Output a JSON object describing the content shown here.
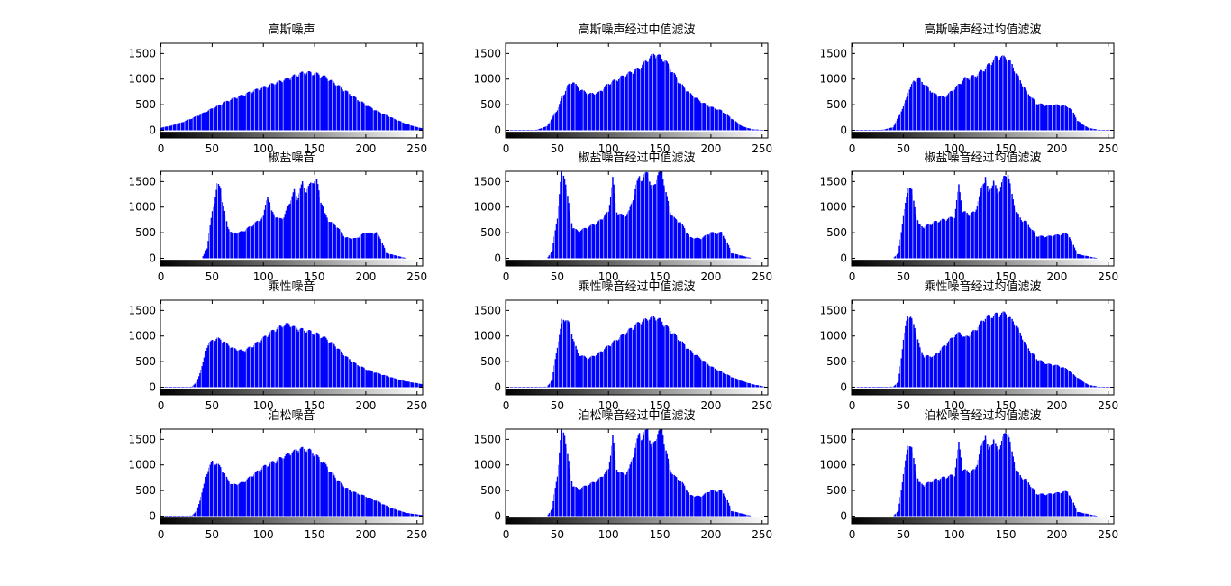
{
  "figure": {
    "rows": 4,
    "cols": 3
  },
  "colors": {
    "bar": "#0000ff",
    "bar_gap": "#ffffff",
    "axis": "#000000",
    "background": "#ffffff"
  },
  "chart_data": [
    {
      "type": "bar",
      "title": "高斯噪声",
      "bins": 256,
      "xlim": [
        0,
        255
      ],
      "ylim": [
        -150,
        1700
      ],
      "xticks": [
        0,
        50,
        100,
        150,
        200,
        250
      ],
      "yticks": [
        0,
        500,
        1000,
        1500
      ],
      "colorbar": "grayscale",
      "profile": {
        "x": [
          0,
          10,
          20,
          30,
          40,
          50,
          60,
          70,
          80,
          90,
          100,
          110,
          120,
          130,
          140,
          150,
          160,
          170,
          180,
          190,
          200,
          210,
          220,
          230,
          240,
          250,
          255
        ],
        "y": [
          50,
          90,
          150,
          230,
          320,
          420,
          520,
          610,
          680,
          760,
          830,
          900,
          970,
          1050,
          1120,
          1100,
          1030,
          900,
          760,
          620,
          490,
          380,
          290,
          200,
          120,
          60,
          40
        ]
      }
    },
    {
      "type": "bar",
      "title": "高斯噪声经过中值滤波",
      "bins": 256,
      "xlim": [
        0,
        255
      ],
      "ylim": [
        -150,
        1700
      ],
      "xticks": [
        0,
        50,
        100,
        150,
        200,
        250
      ],
      "yticks": [
        0,
        500,
        1000,
        1500
      ],
      "colorbar": "grayscale",
      "profile": {
        "x": [
          0,
          30,
          40,
          50,
          55,
          60,
          65,
          70,
          80,
          90,
          100,
          110,
          120,
          130,
          140,
          145,
          150,
          155,
          160,
          170,
          180,
          190,
          200,
          210,
          220,
          230,
          240,
          255
        ],
        "y": [
          0,
          10,
          80,
          400,
          650,
          850,
          950,
          820,
          700,
          720,
          900,
          1000,
          1100,
          1200,
          1400,
          1480,
          1420,
          1350,
          1200,
          900,
          700,
          550,
          450,
          380,
          230,
          80,
          20,
          0
        ]
      }
    },
    {
      "type": "bar",
      "title": "高斯噪声经过均值滤波",
      "bins": 256,
      "xlim": [
        0,
        255
      ],
      "ylim": [
        -150,
        1700
      ],
      "xticks": [
        0,
        50,
        100,
        150,
        200,
        250
      ],
      "yticks": [
        0,
        500,
        1000,
        1500
      ],
      "colorbar": "grayscale",
      "profile": {
        "x": [
          0,
          30,
          40,
          50,
          55,
          60,
          65,
          70,
          80,
          90,
          100,
          110,
          120,
          130,
          140,
          145,
          150,
          155,
          160,
          170,
          180,
          190,
          200,
          210,
          215,
          220,
          230,
          240,
          255
        ],
        "y": [
          0,
          10,
          60,
          450,
          750,
          950,
          1000,
          900,
          700,
          640,
          800,
          1000,
          1050,
          1200,
          1400,
          1420,
          1400,
          1300,
          1100,
          750,
          520,
          480,
          490,
          460,
          380,
          180,
          50,
          10,
          0
        ]
      }
    },
    {
      "type": "bar",
      "title": "椒盐噪音",
      "bins": 256,
      "xlim": [
        0,
        255
      ],
      "ylim": [
        -150,
        1700
      ],
      "xticks": [
        0,
        50,
        100,
        150,
        200,
        250
      ],
      "yticks": [
        0,
        500,
        1000,
        1500
      ],
      "colorbar": "grayscale",
      "profile": {
        "x": [
          0,
          40,
          45,
          50,
          55,
          58,
          62,
          65,
          70,
          80,
          90,
          100,
          104,
          108,
          115,
          120,
          130,
          133,
          138,
          142,
          148,
          152,
          155,
          160,
          165,
          170,
          180,
          190,
          200,
          205,
          210,
          215,
          220,
          240,
          255
        ],
        "y": [
          0,
          0,
          200,
          900,
          1420,
          1350,
          900,
          600,
          470,
          520,
          650,
          800,
          1250,
          900,
          750,
          800,
          1300,
          1150,
          1450,
          1300,
          1500,
          1500,
          1200,
          850,
          700,
          650,
          400,
          380,
          500,
          480,
          500,
          350,
          100,
          0,
          0
        ]
      }
    },
    {
      "type": "bar",
      "title": "椒盐噪音经过中值滤波",
      "bins": 256,
      "xlim": [
        0,
        255
      ],
      "ylim": [
        -150,
        1700
      ],
      "xticks": [
        0,
        50,
        100,
        150,
        200,
        250
      ],
      "yticks": [
        0,
        500,
        1000,
        1500
      ],
      "colorbar": "grayscale",
      "profile": {
        "x": [
          0,
          40,
          45,
          50,
          54,
          57,
          62,
          65,
          70,
          80,
          90,
          100,
          104,
          108,
          115,
          120,
          130,
          133,
          138,
          142,
          148,
          152,
          155,
          160,
          165,
          170,
          180,
          190,
          200,
          205,
          210,
          215,
          220,
          240,
          255
        ],
        "y": [
          0,
          0,
          150,
          800,
          1650,
          1600,
          900,
          600,
          520,
          600,
          700,
          900,
          1550,
          900,
          800,
          900,
          1600,
          1500,
          1700,
          1300,
          1600,
          1700,
          1350,
          900,
          750,
          700,
          400,
          380,
          500,
          480,
          500,
          350,
          100,
          0,
          0
        ]
      }
    },
    {
      "type": "bar",
      "title": "椒盐噪音经过均值滤波",
      "bins": 256,
      "xlim": [
        0,
        255
      ],
      "ylim": [
        -150,
        1700
      ],
      "xticks": [
        0,
        50,
        100,
        150,
        200,
        250
      ],
      "yticks": [
        0,
        500,
        1000,
        1500
      ],
      "colorbar": "grayscale",
      "profile": {
        "x": [
          0,
          40,
          45,
          50,
          55,
          58,
          62,
          65,
          70,
          80,
          90,
          100,
          104,
          108,
          115,
          120,
          130,
          133,
          138,
          142,
          148,
          152,
          155,
          160,
          165,
          170,
          180,
          190,
          200,
          210,
          215,
          220,
          240,
          255
        ],
        "y": [
          0,
          0,
          100,
          800,
          1420,
          1300,
          900,
          650,
          600,
          700,
          750,
          800,
          1400,
          900,
          850,
          900,
          1600,
          1250,
          1500,
          1250,
          1550,
          1650,
          1300,
          900,
          750,
          700,
          430,
          420,
          450,
          480,
          300,
          80,
          0,
          0
        ]
      }
    },
    {
      "type": "bar",
      "title": "乘性噪音",
      "bins": 256,
      "xlim": [
        0,
        255
      ],
      "ylim": [
        -150,
        1700
      ],
      "xticks": [
        0,
        50,
        100,
        150,
        200,
        250
      ],
      "yticks": [
        0,
        500,
        1000,
        1500
      ],
      "colorbar": "grayscale",
      "profile": {
        "x": [
          0,
          30,
          35,
          40,
          45,
          50,
          55,
          60,
          70,
          80,
          90,
          100,
          110,
          120,
          125,
          130,
          140,
          150,
          160,
          170,
          180,
          190,
          200,
          210,
          220,
          230,
          240,
          255
        ],
        "y": [
          0,
          10,
          100,
          400,
          800,
          900,
          940,
          900,
          750,
          700,
          800,
          950,
          1100,
          1200,
          1220,
          1150,
          1100,
          1050,
          950,
          800,
          600,
          450,
          350,
          280,
          220,
          160,
          110,
          60
        ]
      }
    },
    {
      "type": "bar",
      "title": "乘性噪音经过中值滤波",
      "bins": 256,
      "xlim": [
        0,
        255
      ],
      "ylim": [
        -150,
        1700
      ],
      "xticks": [
        0,
        50,
        100,
        150,
        200,
        250
      ],
      "yticks": [
        0,
        500,
        1000,
        1500
      ],
      "colorbar": "grayscale",
      "profile": {
        "x": [
          0,
          40,
          45,
          50,
          55,
          58,
          62,
          66,
          70,
          80,
          90,
          100,
          110,
          120,
          130,
          140,
          145,
          150,
          160,
          170,
          180,
          190,
          200,
          210,
          220,
          230,
          240,
          255
        ],
        "y": [
          0,
          10,
          150,
          800,
          1300,
          1330,
          1200,
          900,
          650,
          550,
          650,
          800,
          950,
          1100,
          1250,
          1330,
          1350,
          1300,
          1100,
          900,
          700,
          550,
          400,
          300,
          200,
          120,
          60,
          0
        ]
      }
    },
    {
      "type": "bar",
      "title": "乘性噪音经过均值滤波",
      "bins": 256,
      "xlim": [
        0,
        255
      ],
      "ylim": [
        -150,
        1700
      ],
      "xticks": [
        0,
        50,
        100,
        150,
        200,
        250
      ],
      "yticks": [
        0,
        500,
        1000,
        1500
      ],
      "colorbar": "grayscale",
      "profile": {
        "x": [
          0,
          40,
          45,
          50,
          54,
          57,
          62,
          66,
          70,
          80,
          90,
          100,
          105,
          110,
          120,
          130,
          140,
          145,
          150,
          160,
          170,
          180,
          190,
          200,
          210,
          220,
          230,
          240,
          255
        ],
        "y": [
          0,
          10,
          100,
          900,
          1400,
          1350,
          1100,
          750,
          600,
          600,
          800,
          1000,
          1050,
          950,
          1100,
          1350,
          1400,
          1430,
          1420,
          1200,
          800,
          550,
          450,
          420,
          350,
          180,
          50,
          10,
          0
        ]
      }
    },
    {
      "type": "bar",
      "title": "泊松噪音",
      "bins": 256,
      "xlim": [
        0,
        255
      ],
      "ylim": [
        -150,
        1700
      ],
      "xticks": [
        0,
        50,
        100,
        150,
        200,
        250
      ],
      "yticks": [
        0,
        500,
        1000,
        1500
      ],
      "colorbar": "grayscale",
      "profile": {
        "x": [
          0,
          30,
          35,
          40,
          45,
          50,
          55,
          60,
          65,
          70,
          80,
          90,
          100,
          110,
          120,
          130,
          135,
          140,
          145,
          150,
          160,
          170,
          180,
          190,
          200,
          210,
          220,
          230,
          240,
          255
        ],
        "y": [
          0,
          10,
          100,
          450,
          850,
          1050,
          1000,
          900,
          700,
          600,
          650,
          800,
          950,
          1050,
          1150,
          1250,
          1300,
          1300,
          1270,
          1200,
          1000,
          750,
          550,
          450,
          380,
          300,
          200,
          120,
          60,
          20
        ]
      }
    },
    {
      "type": "bar",
      "title": "泊松噪音经过中值滤波",
      "bins": 256,
      "xlim": [
        0,
        255
      ],
      "ylim": [
        -150,
        1700
      ],
      "xticks": [
        0,
        50,
        100,
        150,
        200,
        250
      ],
      "yticks": [
        0,
        500,
        1000,
        1500
      ],
      "colorbar": "grayscale",
      "profile": {
        "x": [
          0,
          40,
          45,
          50,
          54,
          57,
          62,
          65,
          70,
          80,
          90,
          100,
          104,
          108,
          115,
          120,
          130,
          133,
          138,
          142,
          148,
          152,
          155,
          160,
          165,
          170,
          180,
          190,
          200,
          205,
          210,
          215,
          220,
          240,
          255
        ],
        "y": [
          0,
          0,
          150,
          800,
          1650,
          1600,
          900,
          600,
          520,
          600,
          700,
          900,
          1550,
          900,
          800,
          900,
          1600,
          1500,
          1700,
          1300,
          1600,
          1700,
          1350,
          900,
          750,
          700,
          400,
          380,
          500,
          480,
          500,
          350,
          100,
          0,
          0
        ]
      }
    },
    {
      "type": "bar",
      "title": "泊松噪音经过均值滤波",
      "bins": 256,
      "xlim": [
        0,
        255
      ],
      "ylim": [
        -150,
        1700
      ],
      "xticks": [
        0,
        50,
        100,
        150,
        200,
        250
      ],
      "yticks": [
        0,
        500,
        1000,
        1500
      ],
      "colorbar": "grayscale",
      "profile": {
        "x": [
          0,
          40,
          45,
          50,
          55,
          58,
          62,
          65,
          70,
          80,
          90,
          100,
          104,
          108,
          115,
          120,
          130,
          133,
          138,
          142,
          148,
          152,
          155,
          160,
          165,
          170,
          180,
          190,
          200,
          210,
          215,
          220,
          240,
          255
        ],
        "y": [
          0,
          0,
          100,
          800,
          1420,
          1300,
          900,
          650,
          600,
          700,
          750,
          800,
          1400,
          900,
          850,
          900,
          1600,
          1250,
          1500,
          1250,
          1550,
          1650,
          1300,
          900,
          750,
          700,
          430,
          420,
          450,
          480,
          300,
          80,
          0,
          0
        ]
      }
    }
  ]
}
